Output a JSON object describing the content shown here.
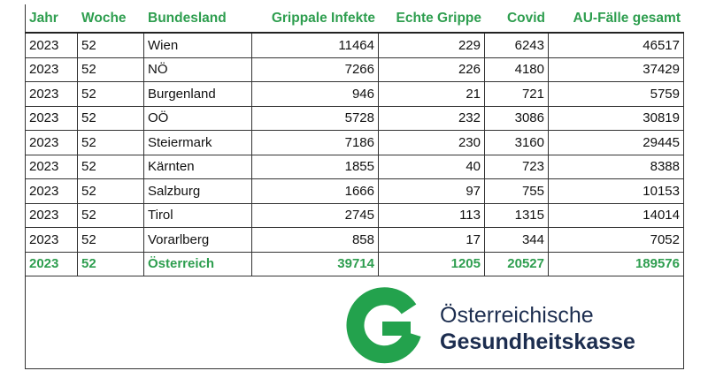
{
  "table": {
    "header": [
      "Jahr",
      "Woche",
      "Bundesland",
      "Grippale Infekte",
      "Echte Grippe",
      "Covid",
      "AU-Fälle gesamt"
    ],
    "rows": [
      [
        2023,
        52,
        "Wien",
        11464,
        229,
        6243,
        46517
      ],
      [
        2023,
        52,
        "NÖ",
        7266,
        226,
        4180,
        37429
      ],
      [
        2023,
        52,
        "Burgenland",
        946,
        21,
        721,
        5759
      ],
      [
        2023,
        52,
        "OÖ",
        5728,
        232,
        3086,
        30819
      ],
      [
        2023,
        52,
        "Steiermark",
        7186,
        230,
        3160,
        29445
      ],
      [
        2023,
        52,
        "Kärnten",
        1855,
        40,
        723,
        8388
      ],
      [
        2023,
        52,
        "Salzburg",
        1666,
        97,
        755,
        10153
      ],
      [
        2023,
        52,
        "Tirol",
        2745,
        113,
        1315,
        14014
      ],
      [
        2023,
        52,
        "Vorarlberg",
        858,
        17,
        344,
        7052
      ]
    ],
    "total": [
      2023,
      52,
      "Österreich",
      39714,
      1205,
      20527,
      189576
    ]
  },
  "logo": {
    "line1": "Österreichische",
    "line2": "Gesundheitskasse"
  }
}
